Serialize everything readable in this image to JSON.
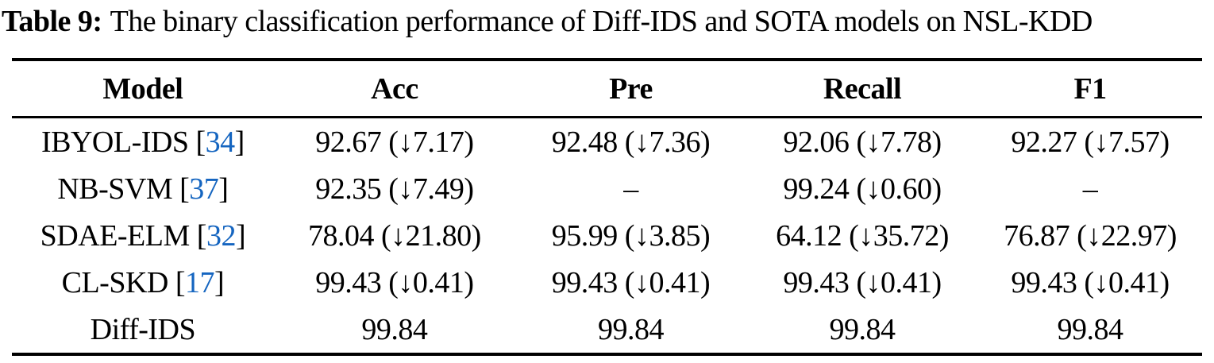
{
  "caption": {
    "label": "Table 9:",
    "text": "The binary classification performance of Diff-IDS and SOTA models on NSL-KDD"
  },
  "table": {
    "columns": [
      "Model",
      "Acc",
      "Pre",
      "Recall",
      "F1"
    ],
    "rows": [
      {
        "model": "IBYOL-IDS",
        "cite_open": " [",
        "cite": "34",
        "cite_close": "]",
        "acc": "92.67 (↓7.17)",
        "pre": "92.48 (↓7.36)",
        "recall": "92.06 (↓7.78)",
        "f1": "92.27 (↓7.57)"
      },
      {
        "model": "NB-SVM",
        "cite_open": " [",
        "cite": "37",
        "cite_close": "]",
        "acc": "92.35 (↓7.49)",
        "pre": "–",
        "recall": "99.24 (↓0.60)",
        "f1": "–"
      },
      {
        "model": "SDAE-ELM",
        "cite_open": " [",
        "cite": "32",
        "cite_close": "]",
        "acc": "78.04 (↓21.80)",
        "pre": "95.99 (↓3.85)",
        "recall": "64.12 (↓35.72)",
        "f1": "76.87 (↓22.97)"
      },
      {
        "model": "CL-SKD",
        "cite_open": " [",
        "cite": "17",
        "cite_close": "]",
        "acc": "99.43 (↓0.41)",
        "pre": "99.43 (↓0.41)",
        "recall": "99.43 (↓0.41)",
        "f1": "99.43 (↓0.41)"
      },
      {
        "model": "Diff-IDS",
        "acc": "99.84",
        "pre": "99.84",
        "recall": "99.84",
        "f1": "99.84"
      }
    ],
    "colors": {
      "citation_blue": "#1565C0",
      "text_black": "#000000"
    }
  }
}
